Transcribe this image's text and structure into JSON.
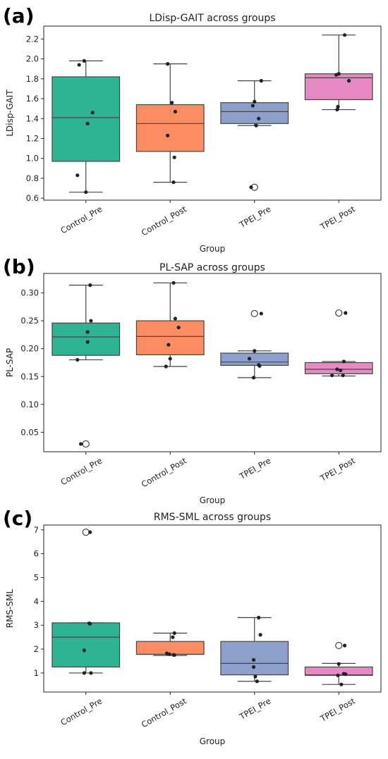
{
  "panels": [
    {
      "letter": "(a)",
      "chart_data": {
        "type": "box",
        "title": "LDisp-GAIT across groups",
        "xlabel": "Group",
        "ylabel": "LDisp-GAIT",
        "ylim": [
          0.58,
          2.33
        ],
        "yticks": [
          0.6,
          0.8,
          1.0,
          1.2,
          1.4,
          1.6,
          1.8,
          2.0,
          2.2
        ],
        "tick_labels": [
          "0.6",
          "0.8",
          "1.0",
          "1.2",
          "1.4",
          "1.6",
          "1.8",
          "2.0",
          "2.2"
        ],
        "categories": [
          "Control_Pre",
          "Control_Post",
          "TPEI_Pre",
          "TPEI_Post"
        ],
        "colors": [
          "#2fb395",
          "#fc8d62",
          "#8da0cb",
          "#e78ac3"
        ],
        "boxes": [
          {
            "whisker_low": 0.66,
            "q1": 0.97,
            "median": 1.41,
            "q3": 1.82,
            "whisker_high": 1.98,
            "outliers": []
          },
          {
            "whisker_low": 0.76,
            "q1": 1.07,
            "median": 1.35,
            "q3": 1.54,
            "whisker_high": 1.95,
            "outliers": []
          },
          {
            "whisker_low": 1.33,
            "q1": 1.35,
            "median": 1.47,
            "q3": 1.56,
            "whisker_high": 1.78,
            "outliers": [
              0.71
            ]
          },
          {
            "whisker_low": 1.49,
            "q1": 1.59,
            "median": 1.81,
            "q3": 1.85,
            "whisker_high": 2.24,
            "outliers": []
          }
        ],
        "points": [
          [
            [
              -0.08,
              1.94
            ],
            [
              -0.02,
              1.98
            ],
            [
              0.02,
              1.35
            ],
            [
              0.08,
              1.46
            ],
            [
              -0.1,
              0.83
            ],
            [
              0.0,
              0.66
            ]
          ],
          [
            [
              -0.03,
              1.95
            ],
            [
              0.02,
              1.56
            ],
            [
              0.06,
              1.47
            ],
            [
              -0.03,
              1.23
            ],
            [
              0.05,
              1.01
            ],
            [
              0.04,
              0.76
            ]
          ],
          [
            [
              0.08,
              1.78
            ],
            [
              0.0,
              1.57
            ],
            [
              -0.02,
              1.53
            ],
            [
              0.05,
              1.4
            ],
            [
              0.02,
              1.33
            ],
            [
              -0.04,
              0.71
            ]
          ],
          [
            [
              0.07,
              2.24
            ],
            [
              -0.03,
              1.84
            ],
            [
              0.0,
              1.85
            ],
            [
              0.12,
              1.78
            ],
            [
              -0.01,
              1.52
            ],
            [
              -0.02,
              1.49
            ]
          ]
        ]
      }
    },
    {
      "letter": "(b)",
      "chart_data": {
        "type": "box",
        "title": "PL-SAP across groups",
        "xlabel": "Group",
        "ylabel": "PL-SAP",
        "ylim": [
          0.015,
          0.335
        ],
        "yticks": [
          0.05,
          0.1,
          0.15,
          0.2,
          0.25,
          0.3
        ],
        "tick_labels": [
          "0.05",
          "0.10",
          "0.15",
          "0.20",
          "0.25",
          "0.30"
        ],
        "categories": [
          "Control_Pre",
          "Control_Post",
          "TPEI_Pre",
          "TPEI_Post"
        ],
        "colors": [
          "#2fb395",
          "#fc8d62",
          "#8da0cb",
          "#e78ac3"
        ],
        "boxes": [
          {
            "whisker_low": 0.18,
            "q1": 0.188,
            "median": 0.221,
            "q3": 0.246,
            "whisker_high": 0.314,
            "outliers": [
              0.029
            ]
          },
          {
            "whisker_low": 0.168,
            "q1": 0.189,
            "median": 0.222,
            "q3": 0.25,
            "whisker_high": 0.318,
            "outliers": []
          },
          {
            "whisker_low": 0.148,
            "q1": 0.17,
            "median": 0.176,
            "q3": 0.192,
            "whisker_high": 0.196,
            "outliers": [
              0.263
            ]
          },
          {
            "whisker_low": 0.151,
            "q1": 0.155,
            "median": 0.163,
            "q3": 0.175,
            "whisker_high": 0.177,
            "outliers": [
              0.264
            ]
          }
        ],
        "points": [
          [
            [
              0.05,
              0.314
            ],
            [
              0.06,
              0.25
            ],
            [
              0.02,
              0.23
            ],
            [
              0.02,
              0.212
            ],
            [
              -0.1,
              0.18
            ],
            [
              -0.06,
              0.029
            ]
          ],
          [
            [
              0.04,
              0.318
            ],
            [
              0.06,
              0.254
            ],
            [
              0.1,
              0.238
            ],
            [
              -0.02,
              0.207
            ],
            [
              0.0,
              0.182
            ],
            [
              -0.05,
              0.168
            ]
          ],
          [
            [
              0.08,
              0.263
            ],
            [
              0.0,
              0.196
            ],
            [
              -0.06,
              0.182
            ],
            [
              0.05,
              0.171
            ],
            [
              0.06,
              0.169
            ],
            [
              -0.01,
              0.148
            ]
          ],
          [
            [
              0.08,
              0.264
            ],
            [
              0.06,
              0.177
            ],
            [
              -0.02,
              0.163
            ],
            [
              0.02,
              0.161
            ],
            [
              0.05,
              0.152
            ],
            [
              -0.08,
              0.152
            ]
          ]
        ]
      }
    },
    {
      "letter": "(c)",
      "chart_data": {
        "type": "box",
        "title": "RMS-SML across groups",
        "xlabel": "Group",
        "ylabel": "RMS-SML",
        "ylim": [
          0.2,
          7.2
        ],
        "yticks": [
          1,
          2,
          3,
          4,
          5,
          6,
          7
        ],
        "tick_labels": [
          "1",
          "2",
          "3",
          "4",
          "5",
          "6",
          "7"
        ],
        "categories": [
          "Control_Pre",
          "Control_Post",
          "TPEI_Pre",
          "TPEI_Post"
        ],
        "colors": [
          "#2fb395",
          "#fc8d62",
          "#8da0cb",
          "#e78ac3"
        ],
        "boxes": [
          {
            "whisker_low": 1.0,
            "q1": 1.25,
            "median": 2.5,
            "q3": 3.1,
            "whisker_high": 3.1,
            "outliers": [
              6.9
            ]
          },
          {
            "whisker_low": 1.73,
            "q1": 1.78,
            "median": 1.78,
            "q3": 2.32,
            "whisker_high": 2.67,
            "outliers": []
          },
          {
            "whisker_low": 0.65,
            "q1": 0.92,
            "median": 1.4,
            "q3": 2.32,
            "whisker_high": 3.32,
            "outliers": []
          },
          {
            "whisker_low": 0.52,
            "q1": 0.9,
            "median": 0.92,
            "q3": 1.25,
            "whisker_high": 1.4,
            "outliers": [
              2.15
            ]
          }
        ],
        "points": [
          [
            [
              0.05,
              6.9
            ],
            [
              0.04,
              3.08
            ],
            [
              0.05,
              3.06
            ],
            [
              -0.02,
              1.95
            ],
            [
              -0.02,
              1.0
            ],
            [
              0.06,
              1.0
            ]
          ],
          [
            [
              0.05,
              2.67
            ],
            [
              0.03,
              2.5
            ],
            [
              -0.04,
              1.82
            ],
            [
              -0.01,
              1.79
            ],
            [
              0.04,
              1.76
            ],
            [
              0.05,
              1.75
            ]
          ],
          [
            [
              0.05,
              3.32
            ],
            [
              0.07,
              2.6
            ],
            [
              -0.01,
              1.55
            ],
            [
              -0.01,
              1.25
            ],
            [
              0.01,
              0.85
            ],
            [
              0.03,
              0.65
            ]
          ],
          [
            [
              0.07,
              2.15
            ],
            [
              0.0,
              1.38
            ],
            [
              0.06,
              0.97
            ],
            [
              0.08,
              0.95
            ],
            [
              -0.01,
              0.9
            ],
            [
              0.03,
              0.52
            ]
          ]
        ]
      }
    }
  ]
}
